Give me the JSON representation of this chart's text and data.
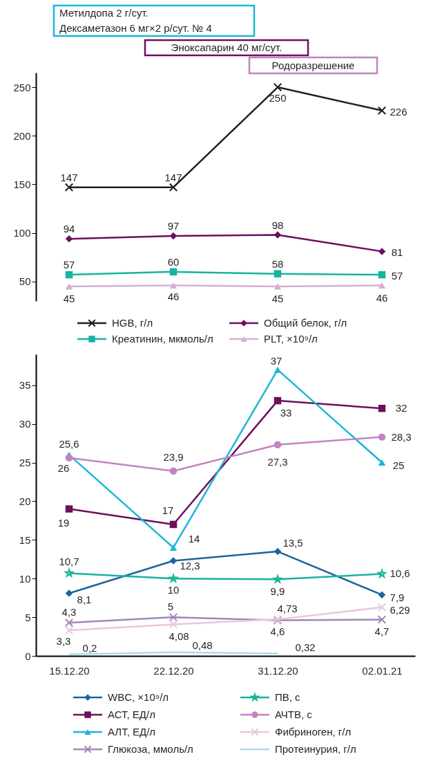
{
  "chart_data": [
    {
      "type": "line",
      "categories": [
        "15.12.20",
        "22.12.20",
        "31.12.20",
        "02.01.21"
      ],
      "tick_labels": "y",
      "ylim": [
        30,
        265
      ],
      "yticks": [
        50,
        100,
        150,
        200,
        250
      ],
      "grid": false,
      "legend": "bottom",
      "annotations": [
        "Метилдопа 2 г/сут.",
        "Дексаметазон 6 мг×2 р/сут. № 4",
        "Эноксапарин 40 мг/сут.",
        "Родоразрешение"
      ],
      "series": [
        {
          "name": "HGB, г/л",
          "color": "#231f20",
          "marker": "cross",
          "values": [
            147,
            147,
            250,
            226
          ],
          "value_labels": [
            "147",
            "147",
            "250",
            "226"
          ]
        },
        {
          "name": "Общий белок, г/л",
          "color": "#6d0f5d",
          "marker": "diamond",
          "values": [
            94,
            97,
            98,
            81
          ],
          "value_labels": [
            "94",
            "97",
            "98",
            "81"
          ]
        },
        {
          "name": "Креатинин, мкмоль/л",
          "color": "#17b3a3",
          "marker": "square",
          "values": [
            57,
            60,
            58,
            57
          ],
          "value_labels": [
            "57",
            "60",
            "58",
            "57"
          ]
        },
        {
          "name": "PLT, ×10⁹/л",
          "color": "#d9aed5",
          "marker": "triangle",
          "values": [
            45,
            46,
            45,
            46
          ],
          "value_labels": [
            "45",
            "46",
            "45",
            "46"
          ]
        }
      ]
    },
    {
      "type": "line",
      "categories": [
        "15.12.20",
        "22.12.20",
        "31.12.20",
        "02.01.21"
      ],
      "ylim": [
        0,
        39
      ],
      "yticks": [
        0,
        5,
        10,
        15,
        20,
        25,
        30,
        35
      ],
      "grid": false,
      "legend": "bottom",
      "series": [
        {
          "name": "WBC, ×10⁹/л",
          "color": "#1a659c",
          "marker": "diamond",
          "values": [
            8.1,
            12.3,
            13.5,
            7.9
          ],
          "value_labels": [
            "8,1",
            "12,3",
            "13,5",
            "7,9"
          ]
        },
        {
          "name": "АСТ, ЕД/л",
          "color": "#6d0f5d",
          "marker": "square",
          "values": [
            19,
            17,
            33,
            32
          ],
          "value_labels": [
            "19",
            "17",
            "33",
            "32"
          ]
        },
        {
          "name": "АЛТ, ЕД/л",
          "color": "#1ab7d6",
          "marker": "triangle",
          "values": [
            26,
            14,
            37,
            25
          ],
          "value_labels": [
            "26",
            "14",
            "37",
            "25"
          ]
        },
        {
          "name": "Глюкоза, ммоль/л",
          "color": "#a386b8",
          "marker": "cross",
          "values": [
            4.3,
            5,
            4.6,
            4.7
          ],
          "value_labels": [
            "4,3",
            "5",
            "4,6",
            "4,7"
          ]
        },
        {
          "name": "ПВ, с",
          "color": "#1ab39b",
          "marker": "star",
          "values": [
            10.7,
            10,
            9.9,
            10.6
          ],
          "value_labels": [
            "10,7",
            "10",
            "9,9",
            "10,6"
          ]
        },
        {
          "name": "АЧТВ, с",
          "color": "#c283c0",
          "marker": "circle",
          "values": [
            25.6,
            23.9,
            27.3,
            28.3
          ],
          "value_labels": [
            "25,6",
            "23,9",
            "27,3",
            "28,3"
          ]
        },
        {
          "name": "Фибриноген, г/л",
          "color": "#ecc4de",
          "marker": "cross",
          "values": [
            3.3,
            4.08,
            4.73,
            6.29
          ],
          "value_labels": [
            "3,3",
            "4,08",
            "4,73",
            "6,29"
          ]
        },
        {
          "name": "Протеинурия, г/л",
          "color": "#a8dde6",
          "marker": "none",
          "values": [
            0.2,
            0.48,
            0.32,
            null
          ],
          "value_labels": [
            "0,2",
            "0,48",
            "0,32",
            null
          ]
        }
      ]
    }
  ]
}
